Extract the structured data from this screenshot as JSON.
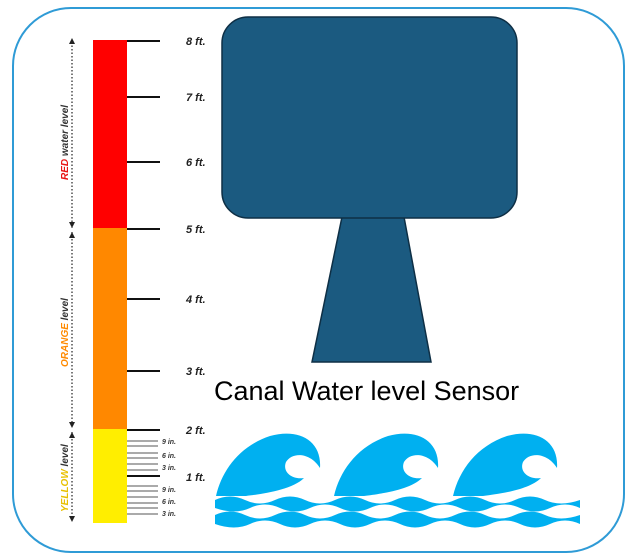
{
  "caption": "Canal Water level Sensor",
  "levels": {
    "red": {
      "word": "RED",
      "rest": " water level",
      "color": "#e81313"
    },
    "orange": {
      "word": "ORANGE",
      "rest": " level",
      "color": "#ff8a00"
    },
    "yellow": {
      "word": "YELLOW",
      "rest": " level",
      "color": "#ffd400"
    }
  },
  "feet_labels": [
    "8 ft.",
    "7 ft.",
    "6 ft.",
    "5 ft.",
    "4 ft.",
    "3 ft.",
    "2 ft.",
    "1 ft."
  ],
  "inch_labels": [
    "9 in.",
    "6 in.",
    "3 in.",
    "9 in.",
    "6 in.",
    "3 in."
  ],
  "colors": {
    "frame_border": "#2f9bd6",
    "sensor": "#1b5a80",
    "wave": "#00b0f0",
    "red_band": "#ff0000",
    "orange_band": "#ff8800",
    "yellow_band": "#ffee00"
  }
}
